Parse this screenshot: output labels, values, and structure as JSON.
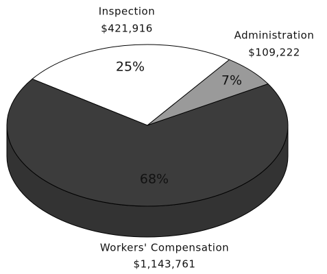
{
  "chart_data": {
    "type": "pie",
    "categories": [
      "Inspection",
      "Administration",
      "Workers' Compensation"
    ],
    "values": [
      421916,
      109222,
      1143761
    ],
    "value_labels": [
      "$421,916",
      "$109,222",
      "$1,143,761"
    ],
    "percents": [
      25,
      7,
      68
    ],
    "percent_labels": [
      "25%",
      "7%",
      "68%"
    ],
    "colors": [
      "#ffffff",
      "#9a9a9a",
      "#3c3c3c"
    ]
  }
}
